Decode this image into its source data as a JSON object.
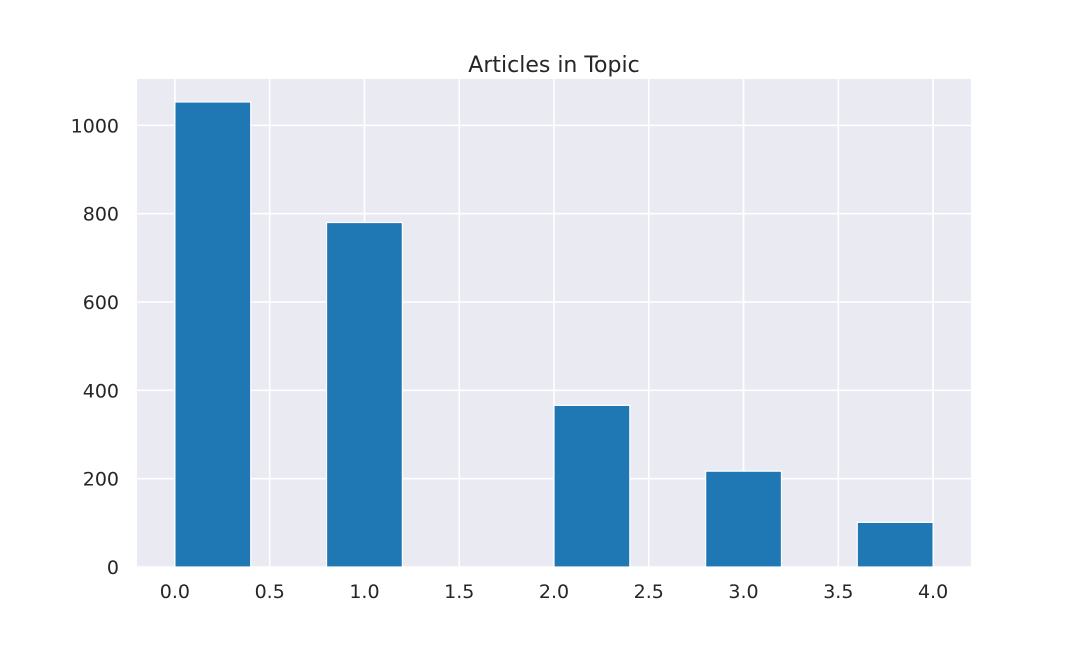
{
  "chart_data": {
    "type": "bar",
    "title": "Articles in Topic",
    "xlabel": "",
    "ylabel": "",
    "bins": [
      {
        "start": 0.0,
        "end": 0.4,
        "value": 1053
      },
      {
        "start": 0.4,
        "end": 0.8,
        "value": 0
      },
      {
        "start": 0.8,
        "end": 1.2,
        "value": 780
      },
      {
        "start": 1.2,
        "end": 1.6,
        "value": 0
      },
      {
        "start": 1.6,
        "end": 2.0,
        "value": 0
      },
      {
        "start": 2.0,
        "end": 2.4,
        "value": 366
      },
      {
        "start": 2.4,
        "end": 2.8,
        "value": 0
      },
      {
        "start": 2.8,
        "end": 3.2,
        "value": 217
      },
      {
        "start": 3.2,
        "end": 3.6,
        "value": 0
      },
      {
        "start": 3.6,
        "end": 4.0,
        "value": 101
      }
    ],
    "xlim": [
      -0.2,
      4.2
    ],
    "ylim": [
      0,
      1105
    ],
    "xticks": [
      "0.0",
      "0.5",
      "1.0",
      "1.5",
      "2.0",
      "2.5",
      "3.0",
      "3.5",
      "4.0"
    ],
    "yticks": [
      "0",
      "200",
      "400",
      "600",
      "800",
      "1000"
    ],
    "grid": true,
    "legend": "none",
    "colors": {
      "bar": "#1f77b4",
      "plot_background": "#eaeaf2",
      "grid": "#ffffff",
      "text": "#262626"
    }
  }
}
